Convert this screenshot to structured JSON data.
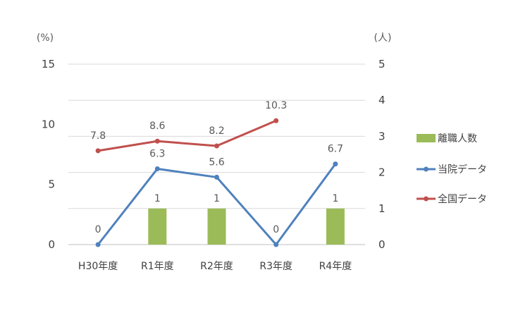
{
  "chart_data": {
    "type": "bar+line",
    "categories": [
      "H30年度",
      "R1年度",
      "R2年度",
      "R3年度",
      "R4年度"
    ],
    "left_axis": {
      "unit_label": "(%)",
      "ylim": [
        0,
        15
      ],
      "ticks": [
        "0",
        "5",
        "10",
        "15"
      ],
      "tick_values": [
        0,
        5,
        10,
        15
      ]
    },
    "right_axis": {
      "unit_label": "(人)",
      "ylim": [
        0,
        5
      ],
      "ticks": [
        "0",
        "1",
        "2",
        "3",
        "4",
        "5"
      ],
      "tick_values": [
        0,
        1,
        2,
        3,
        4,
        5
      ]
    },
    "grid": true,
    "legend_position": "right",
    "series": [
      {
        "name": "離職人数",
        "type": "bar",
        "axis": "right",
        "color": "#9BBB59",
        "values": [
          null,
          1,
          1,
          null,
          1
        ],
        "labels": [
          "",
          "1",
          "1",
          "",
          "1"
        ]
      },
      {
        "name": "当院データ",
        "type": "line",
        "axis": "left",
        "color": "#4F81BD",
        "values": [
          0,
          6.3,
          5.6,
          0,
          6.7
        ],
        "labels": [
          "0",
          "6.3",
          "5.6",
          "0",
          "6.7"
        ]
      },
      {
        "name": "全国データ",
        "type": "line",
        "axis": "left",
        "color": "#C0504D",
        "values": [
          7.8,
          8.6,
          8.2,
          10.3,
          null
        ],
        "labels": [
          "7.8",
          "8.6",
          "8.2",
          "10.3",
          ""
        ]
      }
    ]
  }
}
